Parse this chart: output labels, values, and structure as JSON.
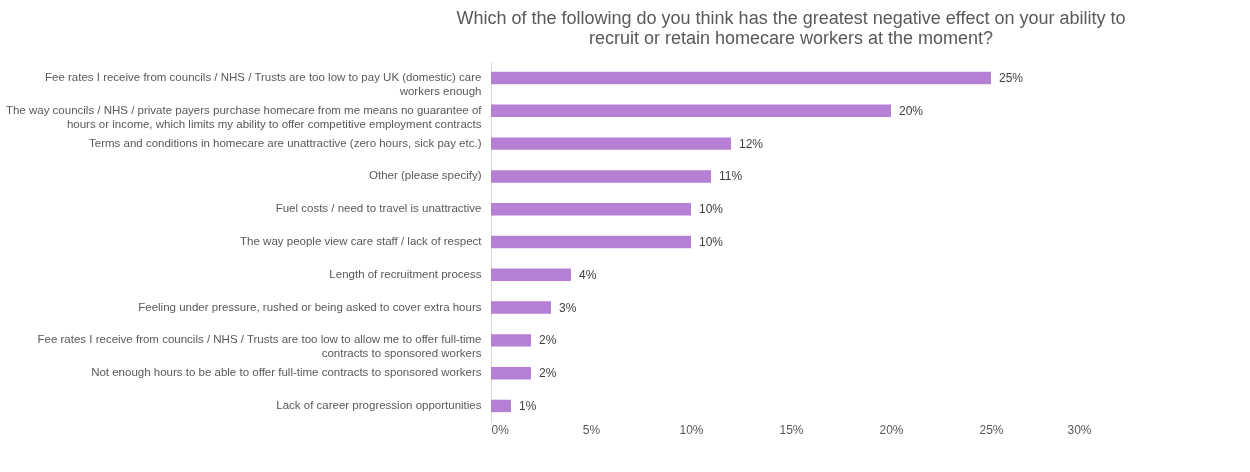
{
  "chart_data": {
    "type": "bar",
    "orientation": "horizontal",
    "title": "Which of the following do you think has the greatest negative effect on your ability to recruit or retain homecare workers at the moment?",
    "categories": [
      "Fee rates I receive from councils / NHS / Trusts are too low to pay UK (domestic) care workers enough",
      "The way councils / NHS / private payers purchase homecare from me means no guarantee of hours or income, which limits my ability to offer competitive employment contracts",
      "Terms and conditions in homecare are unattractive (zero hours, sick pay etc.)",
      "Other (please specify)",
      "Fuel costs / need to travel is unattractive",
      "The way people view care staff / lack of respect",
      "Length of recruitment process",
      "Feeling under pressure, rushed or being asked to cover extra hours",
      "Fee rates I receive from councils / NHS / Trusts are too low to allow me to offer full-time contracts to sponsored workers",
      "Not enough hours to be able to offer full-time contracts to sponsored workers",
      "Lack of career progression opportunities"
    ],
    "values": [
      25,
      20,
      12,
      11,
      10,
      10,
      4,
      3,
      2,
      2,
      1
    ],
    "color": "#b57fd4",
    "value_labels": [
      "25%",
      "20%",
      "12%",
      "11%",
      "10%",
      "10%",
      "4%",
      "3%",
      "2%",
      "2%",
      "1%"
    ],
    "xlim": [
      0,
      30
    ],
    "xticks": [
      {
        "value": 0,
        "label": "0%"
      },
      {
        "value": 5,
        "label": "5%"
      },
      {
        "value": 10,
        "label": "10%"
      },
      {
        "value": 15,
        "label": "15%"
      },
      {
        "value": 20,
        "label": "20%"
      },
      {
        "value": 25,
        "label": "25%"
      },
      {
        "value": 30,
        "label": "30%"
      }
    ],
    "grid": false
  }
}
